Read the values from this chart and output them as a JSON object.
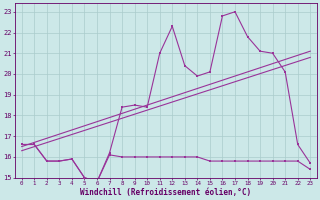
{
  "xlabel": "Windchill (Refroidissement éolien,°C)",
  "background_color": "#cce8e8",
  "grid_color": "#aacccc",
  "line_color": "#993399",
  "hours": [
    0,
    1,
    2,
    3,
    4,
    5,
    6,
    7,
    8,
    9,
    10,
    11,
    12,
    13,
    14,
    15,
    16,
    17,
    18,
    19,
    20,
    21,
    22,
    23
  ],
  "temp": [
    16.6,
    16.6,
    15.8,
    15.8,
    15.9,
    15.0,
    14.8,
    16.2,
    18.4,
    18.5,
    18.4,
    21.0,
    22.3,
    20.4,
    19.9,
    20.1,
    22.8,
    23.0,
    21.8,
    21.1,
    21.0,
    20.1,
    16.6,
    15.7
  ],
  "windchill": [
    16.6,
    16.6,
    15.8,
    15.8,
    15.9,
    15.0,
    14.8,
    16.1,
    16.0,
    16.0,
    16.0,
    16.0,
    16.0,
    16.0,
    16.0,
    15.8,
    15.8,
    15.8,
    15.8,
    15.8,
    15.8,
    15.8,
    15.8,
    15.4
  ],
  "trend1_x": [
    0,
    23
  ],
  "trend1_y": [
    16.5,
    21.1
  ],
  "trend2_x": [
    0,
    23
  ],
  "trend2_y": [
    16.3,
    20.8
  ],
  "ylim": [
    15,
    23.4
  ],
  "xlim": [
    -0.5,
    23.5
  ],
  "yticks": [
    15,
    16,
    17,
    18,
    19,
    20,
    21,
    22,
    23
  ],
  "xticks": [
    0,
    1,
    2,
    3,
    4,
    5,
    6,
    7,
    8,
    9,
    10,
    11,
    12,
    13,
    14,
    15,
    16,
    17,
    18,
    19,
    20,
    21,
    22,
    23
  ]
}
